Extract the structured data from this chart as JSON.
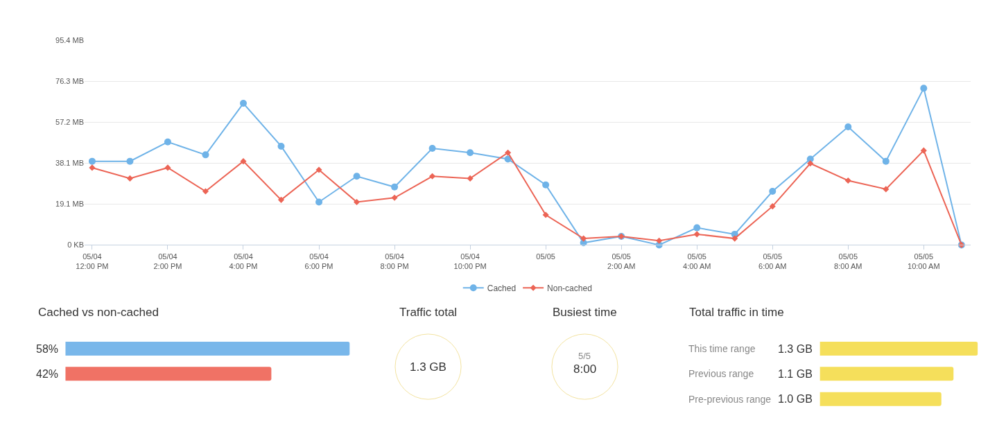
{
  "chart_data": [
    {
      "type": "line",
      "categories": [
        "05/04\n12:00 PM",
        null,
        "05/04\n2:00 PM",
        null,
        "05/04\n4:00 PM",
        null,
        "05/04\n6:00 PM",
        null,
        "05/04\n8:00 PM",
        null,
        "05/04\n10:00 PM",
        null,
        "05/05",
        null,
        "05/05\n2:00 AM",
        null,
        "05/05\n4:00 AM",
        null,
        "05/05\n6:00 AM",
        null,
        "05/05\n8:00 AM",
        null,
        "05/05\n10:00 AM",
        null
      ],
      "series": [
        {
          "name": "Cached",
          "color": "#6fb3e8",
          "marker": "circle",
          "values": [
            39,
            39,
            48,
            42,
            66,
            46,
            20,
            32,
            27,
            45,
            43,
            40,
            28,
            1,
            4,
            0,
            8,
            5,
            25,
            40,
            55,
            39,
            73,
            0
          ]
        },
        {
          "name": "Non-cached",
          "color": "#ec6455",
          "marker": "diamond",
          "values": [
            36,
            31,
            36,
            25,
            39,
            21,
            35,
            20,
            22,
            32,
            31,
            43,
            14,
            3,
            4,
            2,
            5,
            3,
            18,
            38,
            30,
            26,
            44,
            0
          ]
        }
      ],
      "ylim": [
        0,
        95.4
      ],
      "yticks": [
        {
          "value": 0,
          "label": "0 KB"
        },
        {
          "value": 19.1,
          "label": "19.1 MB"
        },
        {
          "value": 38.1,
          "label": "38.1 MB"
        },
        {
          "value": 57.2,
          "label": "57.2 MB"
        },
        {
          "value": 76.3,
          "label": "76.3 MB"
        },
        {
          "value": 95.4,
          "label": "95.4 MB"
        }
      ],
      "grid": "y",
      "legend": "bottom"
    },
    {
      "type": "bar",
      "orientation": "horizontal",
      "title": "Cached vs non-cached",
      "categories": [
        null,
        null
      ],
      "values": [
        58,
        42
      ],
      "colors": [
        "#79b7ea",
        "#f07265"
      ],
      "value_labels": [
        "58%",
        "42%"
      ]
    },
    {
      "type": "other",
      "title": "Traffic total",
      "annotations": [
        "1.3 GB"
      ]
    },
    {
      "type": "other",
      "title": "Busiest time",
      "annotations": [
        "5/5",
        "8:00"
      ]
    },
    {
      "type": "bar",
      "orientation": "horizontal",
      "title": "Total traffic in time",
      "categories": [
        "This time range",
        "Previous range",
        "Pre-previous range"
      ],
      "values": [
        1.3,
        1.1,
        1.0
      ],
      "colors": [
        "#f5df5b",
        "#f5df5b",
        "#f5df5b"
      ],
      "value_labels": [
        "1.3 GB",
        "1.1 GB",
        "1.0 GB"
      ]
    }
  ]
}
